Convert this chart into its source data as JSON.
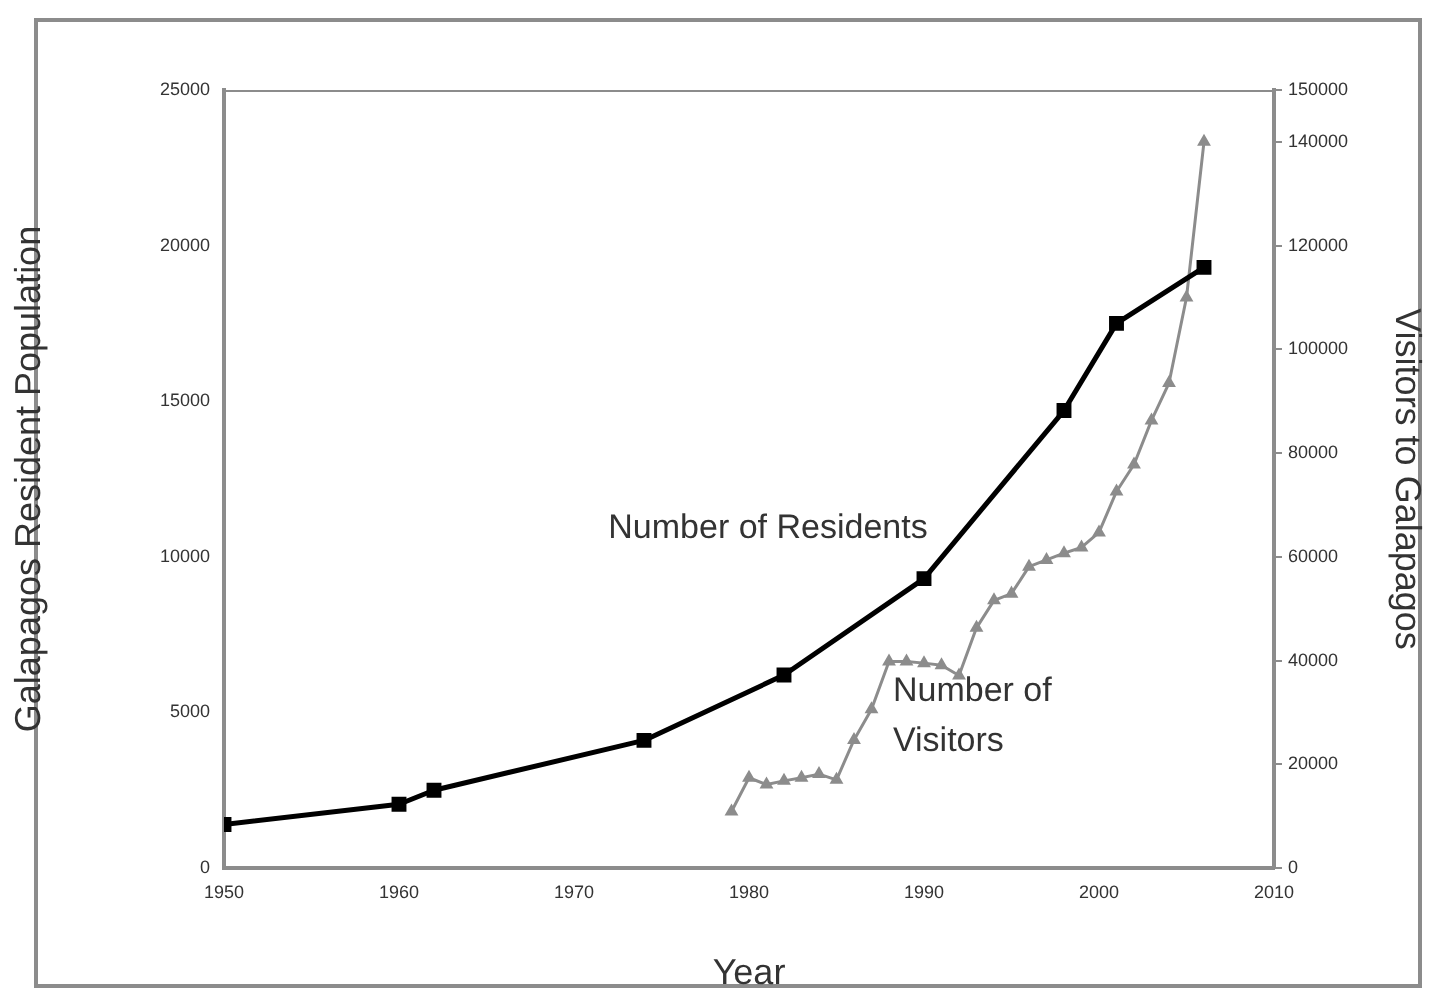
{
  "chart_data": {
    "type": "line",
    "xlabel": "Year",
    "ylabel": "Galapagos Resident Population",
    "y2label": "Visitors to Galapagos",
    "xlim": [
      1950,
      2010
    ],
    "xticks": [
      1950,
      1960,
      1970,
      1980,
      1990,
      2000,
      2010
    ],
    "ylim": [
      0,
      25000
    ],
    "yticks": [
      0,
      5000,
      10000,
      15000,
      20000,
      25000
    ],
    "y2lim": [
      0,
      150000
    ],
    "y2ticks": [
      0,
      20000,
      40000,
      60000,
      80000,
      100000,
      120000,
      140000,
      150000
    ],
    "grid": false,
    "legend": false,
    "series": [
      {
        "name": "Number of Residents",
        "color": "#000000",
        "marker": "square",
        "x": [
          1950,
          1960,
          1962,
          1974,
          1982,
          1990,
          1998,
          2001,
          2006
        ],
        "values": [
          1400,
          2050,
          2500,
          4100,
          6200,
          9300,
          14700,
          17500,
          19300
        ]
      },
      {
        "name": "Number of Visitors",
        "color": "#8c8c8c",
        "marker": "triangle",
        "axis": "y2",
        "x": [
          1979,
          1980,
          1981,
          1982,
          1983,
          1984,
          1985,
          1986,
          1987,
          1988,
          1989,
          1990,
          1991,
          1992,
          1993,
          1994,
          1995,
          1996,
          1997,
          1998,
          1999,
          2000,
          2001,
          2002,
          2003,
          2004,
          2005,
          2006
        ],
        "values": [
          10900,
          17400,
          16100,
          16800,
          17400,
          18100,
          17000,
          24700,
          30600,
          39800,
          39800,
          39500,
          39100,
          37100,
          46300,
          51600,
          52900,
          58100,
          59400,
          60700,
          61800,
          64700,
          72600,
          77800,
          86300,
          93500,
          110000,
          140000
        ]
      }
    ]
  }
}
